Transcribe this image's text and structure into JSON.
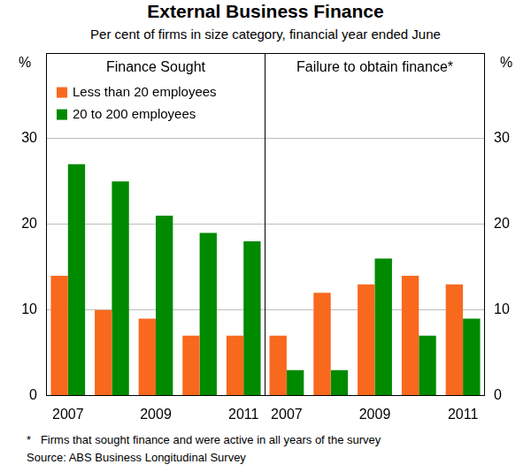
{
  "title": "External Business Finance",
  "subtitle": "Per cent of firms in size category, financial year ended June",
  "footnote": "*   Firms that sought finance and were active in all years of the survey",
  "source": "Source: ABS Business Longitudinal Survey",
  "chart_data": [
    {
      "type": "bar",
      "title": "Finance Sought",
      "ylabel": "%",
      "categories": [
        "2007",
        null,
        "2009",
        null,
        "2011"
      ],
      "series": [
        {
          "name": "Less than 20 employees",
          "color": "#f8691e",
          "values": [
            14,
            10,
            9,
            7,
            7
          ]
        },
        {
          "name": "20 to 200 employees",
          "color": "#008a00",
          "values": [
            27,
            25,
            21,
            19,
            18
          ]
        }
      ],
      "ylim": [
        0,
        40
      ],
      "yticks": [
        0,
        10,
        20,
        30
      ],
      "grid": true,
      "legend": "upper left"
    },
    {
      "type": "bar",
      "title": "Failure to obtain finance*",
      "ylabel": "%",
      "categories": [
        "2007",
        null,
        "2009",
        null,
        "2011"
      ],
      "series": [
        {
          "name": "Less than 20 employees",
          "color": "#f8691e",
          "values": [
            7,
            12,
            13,
            14,
            13
          ]
        },
        {
          "name": "20 to 200 employees",
          "color": "#008a00",
          "values": [
            3,
            3,
            16,
            7,
            9
          ]
        }
      ],
      "ylim": [
        0,
        40
      ],
      "yticks": [
        0,
        10,
        20,
        30
      ],
      "grid": true
    }
  ]
}
